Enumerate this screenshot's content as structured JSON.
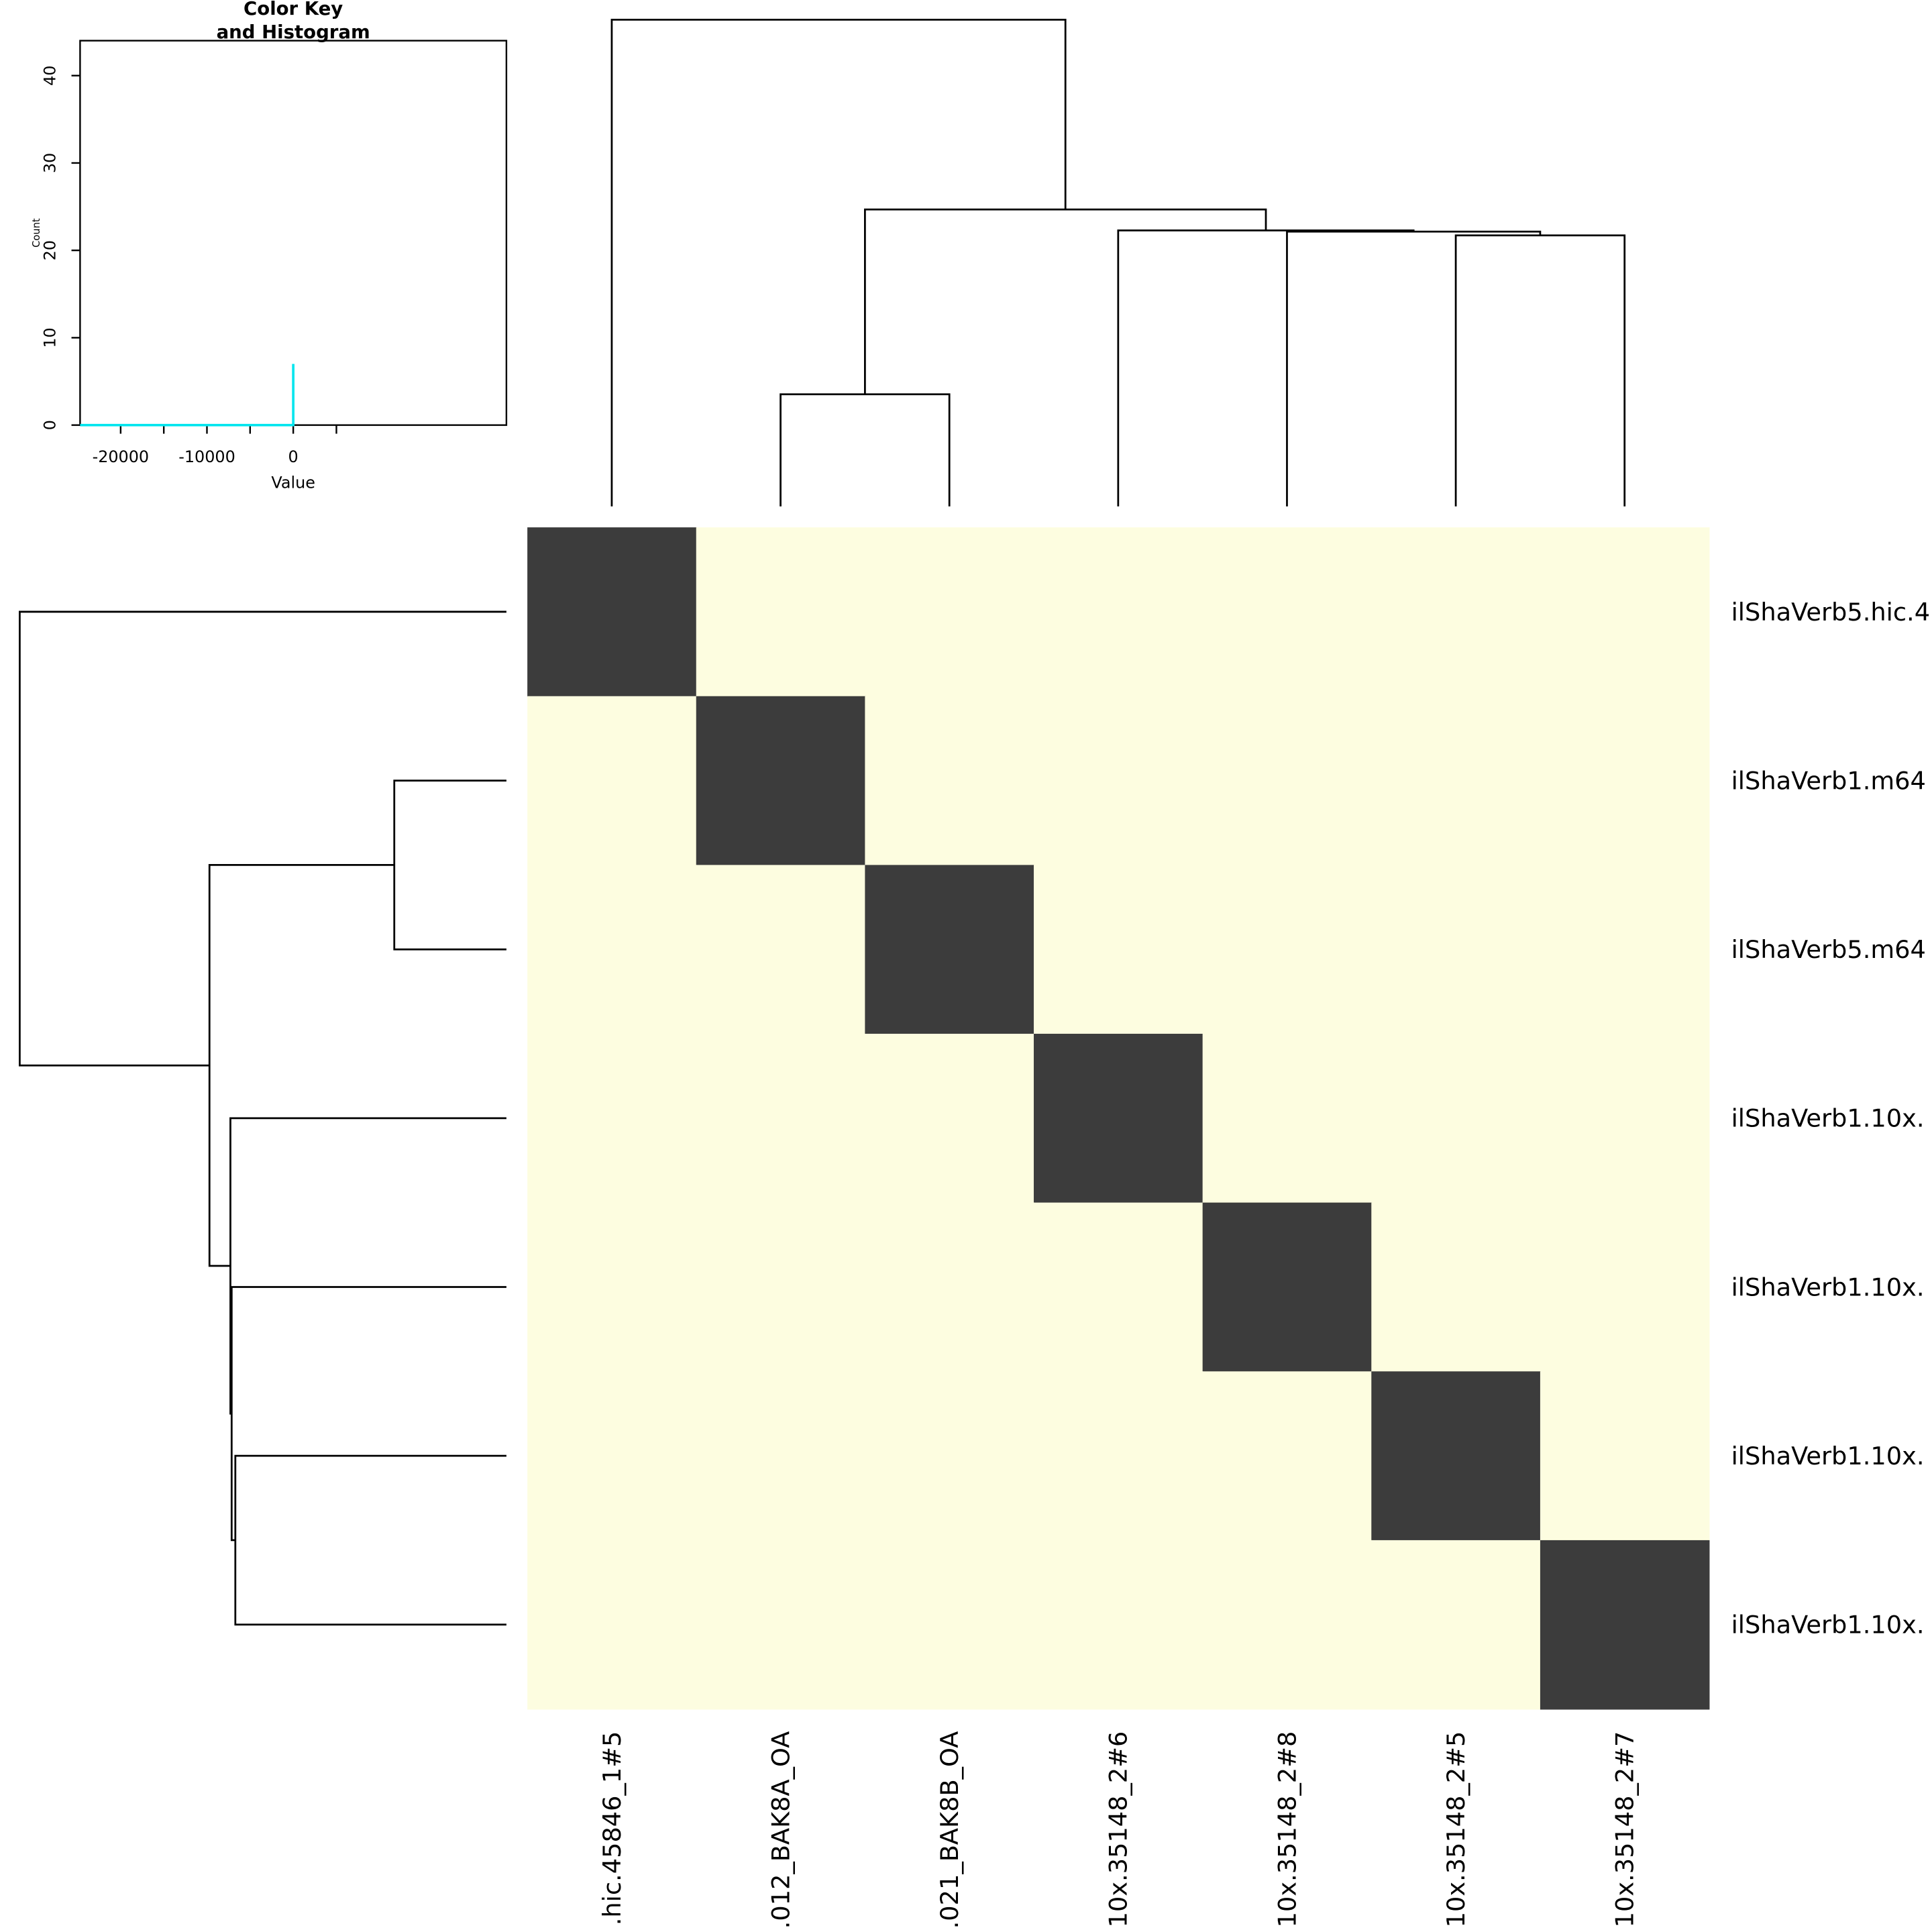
{
  "chart_data": {
    "type": "heatmap",
    "row_labels": [
      "ilShaVerb5.hic.4",
      "ilShaVerb1.m64",
      "ilShaVerb5.m64",
      "ilShaVerb1.10x.",
      "ilShaVerb1.10x.",
      "ilShaVerb1.10x.",
      "ilShaVerb1.10x."
    ],
    "col_labels": [
      ".hic.45846_1#5",
      ".012_BAK8A_OA",
      ".021_BAK8B_OA",
      "10x.35148_2#6",
      "10x.35148_2#8",
      "10x.35148_2#5",
      "10x.35148_2#7"
    ],
    "values": [
      [
        0,
        null,
        null,
        null,
        null,
        null,
        null
      ],
      [
        null,
        0,
        null,
        null,
        null,
        null,
        null
      ],
      [
        null,
        null,
        0,
        null,
        null,
        null,
        null
      ],
      [
        null,
        null,
        null,
        0,
        null,
        null,
        null
      ],
      [
        null,
        null,
        null,
        null,
        0,
        null,
        null
      ],
      [
        null,
        null,
        null,
        null,
        null,
        0,
        null
      ],
      [
        null,
        null,
        null,
        null,
        null,
        null,
        0
      ]
    ],
    "cell_color": "#3c3c3c",
    "na_color": "#fdfde0",
    "key": {
      "title_lines": [
        "Color Key",
        "and Histogram"
      ],
      "xlabel": "Value",
      "ylabel": "Count",
      "xlim": [
        -24700,
        24700
      ],
      "ylim": [
        0,
        44
      ],
      "xticks": [
        -20000,
        -10000,
        0
      ],
      "x_minor_ticks": [
        -15000,
        -5000,
        5000
      ],
      "yticks": [
        0,
        10,
        20,
        30,
        40
      ],
      "hist_x": [
        -24700,
        0,
        0
      ],
      "hist_y": [
        0,
        0,
        7
      ],
      "hist_color": "#00e5ee"
    }
  }
}
